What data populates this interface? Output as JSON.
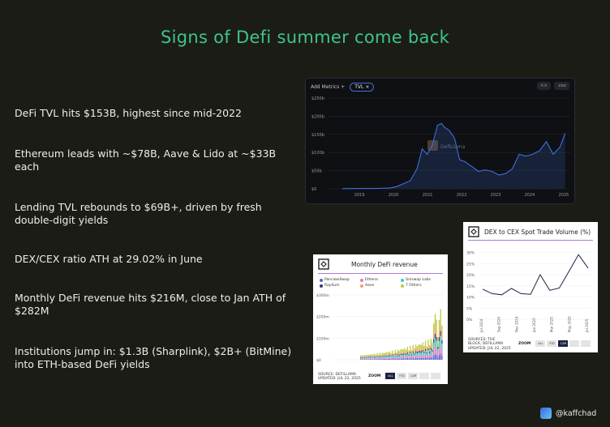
{
  "title": "Signs of Defi summer come back",
  "bullets": [
    "DeFi TVL hits $153B, highest since mid-2022",
    "Ethereum leads with ~$78B, Aave & Lido at ~$33B each",
    "Lending TVL rebounds to $69B+, driven by fresh double-digit yields",
    "DEX/CEX ratio ATH at 29.02% in June",
    "Monthly DeFi revenue hits $216M, close to Jan ATH of $282M",
    "Institutions jump in: $1.3B (Sharplink), $2B+ (BitMine) into ETH-based DeFi yields"
  ],
  "tvl_panel": {
    "add_metrics": "Add Metrics",
    "plus": "+",
    "chip": "TVL",
    "chip_close": "×",
    "btn_code": "<>",
    "btn_csv": ".csv",
    "watermark": "DefiLlama",
    "chart_data": {
      "type": "line",
      "y_ticks": [
        "$250b",
        "$200b",
        "$150b",
        "$100b",
        "$50b",
        "$0"
      ],
      "x_ticks": [
        "2019",
        "2020",
        "2021",
        "2022",
        "2023",
        "2024",
        "2025"
      ],
      "ylim": [
        0,
        250
      ],
      "color": "#3d6fe0",
      "x": [
        2019.0,
        2019.5,
        2020.0,
        2020.4,
        2020.6,
        2020.8,
        2021.0,
        2021.2,
        2021.35,
        2021.5,
        2021.65,
        2021.8,
        2021.92,
        2022.0,
        2022.15,
        2022.3,
        2022.45,
        2022.6,
        2022.8,
        2023.0,
        2023.2,
        2023.4,
        2023.6,
        2023.8,
        2024.0,
        2024.2,
        2024.4,
        2024.6,
        2024.8,
        2025.0,
        2025.2,
        2025.4,
        2025.55
      ],
      "y": [
        0.5,
        1,
        1,
        2,
        6,
        14,
        22,
        55,
        110,
        95,
        120,
        175,
        180,
        170,
        160,
        140,
        80,
        75,
        62,
        48,
        52,
        48,
        38,
        42,
        55,
        95,
        90,
        95,
        105,
        130,
        95,
        115,
        153
      ]
    }
  },
  "revenue_card": {
    "title": "Monthly DeFi revenue",
    "legend": [
      "PancakeSwap",
      "Ethena",
      "Uniswap Labs",
      "RaySum",
      "Aave",
      "7 Others"
    ],
    "legend_colors": [
      "#5b5fd6",
      "#e57ab8",
      "#4ac4c4",
      "#2b3b6e",
      "#e8a15c",
      "#b9c93a"
    ],
    "y_ticks": [
      "$300m",
      "$200m",
      "$100m",
      "$0"
    ],
    "source": "SOURCE: DEFILLAMA",
    "updated": "UPDATED: JUL 22, 2025",
    "zoom_label": "ZOOM",
    "zoom_buttons": [
      "ALL",
      "YTD",
      "12M",
      "",
      ""
    ]
  },
  "dex_card": {
    "title": "DEX to CEX Spot Trade Volume (%)",
    "y_ticks": [
      "30%",
      "25%",
      "20%",
      "15%",
      "10%",
      "5%",
      "0%"
    ],
    "x_ticks": [
      "Jul 2024",
      "Sep 2024",
      "Nov 2024",
      "Jan 2025",
      "Mar 2025",
      "May 2025",
      "Jul 2025"
    ],
    "source": "SOURCES: THE BLOCK, DEFILLAMA",
    "updated": "UPDATED: JUL 22, 2025",
    "zoom_label": "ZOOM",
    "zoom_buttons": [
      "ALL",
      "YTD",
      "12M",
      "",
      ""
    ],
    "chart_data": {
      "type": "line",
      "ylim": [
        0,
        32
      ],
      "values": [
        13.5,
        11.5,
        11,
        13.8,
        11.5,
        11.2,
        20,
        13,
        14,
        21.5,
        29,
        23
      ],
      "color": "#1c2244"
    }
  },
  "handle": "@kaffchad"
}
